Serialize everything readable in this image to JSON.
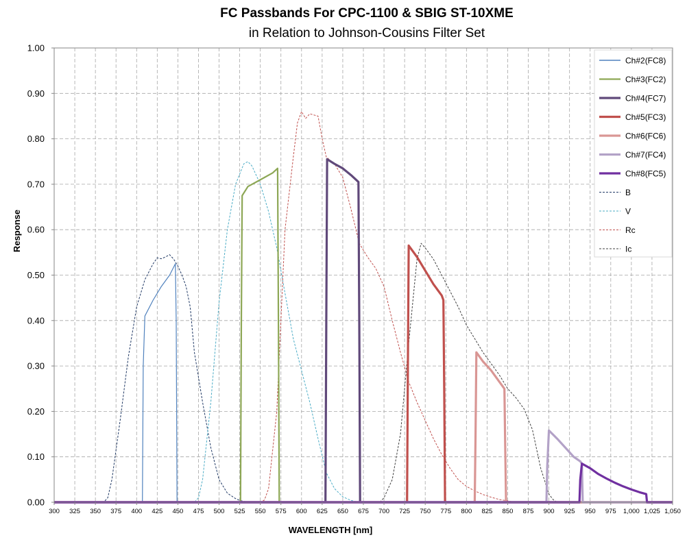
{
  "chart_data": {
    "type": "line",
    "title": "FC Passbands For CPC-1100 & SBIG ST-10XME",
    "subtitle": "in Relation to Johnson-Cousins Filter Set",
    "xlabel": "WAVELENGTH [nm]",
    "ylabel": "Response",
    "xlim": [
      300,
      1050
    ],
    "ylim": [
      0,
      1.0
    ],
    "xticks": [
      300,
      325,
      350,
      375,
      400,
      425,
      450,
      475,
      500,
      525,
      550,
      575,
      600,
      625,
      650,
      675,
      700,
      725,
      750,
      775,
      800,
      825,
      850,
      875,
      900,
      925,
      950,
      975,
      1000,
      1025,
      1050
    ],
    "xtick_labels": [
      "300",
      "325",
      "350",
      "375",
      "400",
      "425",
      "450",
      "475",
      "500",
      "525",
      "550",
      "575",
      "600",
      "625",
      "650",
      "675",
      "700",
      "725",
      "750",
      "775",
      "800",
      "825",
      "850",
      "875",
      "900",
      "925",
      "950",
      "975",
      "1,000",
      "1,025",
      "1,050"
    ],
    "yticks": [
      0,
      0.1,
      0.2,
      0.3,
      0.4,
      0.5,
      0.6,
      0.7,
      0.8,
      0.9,
      1.0
    ],
    "ytick_labels": [
      "0.00",
      "0.10",
      "0.20",
      "0.30",
      "0.40",
      "0.50",
      "0.60",
      "0.70",
      "0.80",
      "0.90",
      "1.00"
    ],
    "grid": true,
    "legend_position": "top-right",
    "series": [
      {
        "name": "Ch#2(FC8)",
        "color": "#4F81BD",
        "width": 1.2,
        "dash": false,
        "x": [
          300,
          407,
          408,
          410,
          420,
          430,
          440,
          447,
          448,
          449,
          1050
        ],
        "y": [
          0,
          0,
          0.3,
          0.41,
          0.445,
          0.475,
          0.5,
          0.525,
          0.4,
          0,
          0
        ]
      },
      {
        "name": "Ch#3(FC2)",
        "color": "#8DA755",
        "width": 2.2,
        "dash": false,
        "x": [
          300,
          526,
          527,
          528,
          535,
          545,
          555,
          565,
          571,
          572,
          573,
          1050
        ],
        "y": [
          0,
          0,
          0.4,
          0.675,
          0.695,
          0.705,
          0.715,
          0.725,
          0.735,
          0.4,
          0,
          0
        ]
      },
      {
        "name": "Ch#4(FC7)",
        "color": "#60497A",
        "width": 3.2,
        "dash": false,
        "x": [
          300,
          629,
          630,
          631,
          640,
          650,
          660,
          669,
          670,
          671,
          1050
        ],
        "y": [
          0,
          0,
          0.4,
          0.755,
          0.745,
          0.735,
          0.72,
          0.705,
          0.4,
          0,
          0
        ]
      },
      {
        "name": "Ch#5(FC3)",
        "color": "#C0504D",
        "width": 3.2,
        "dash": false,
        "x": [
          300,
          728,
          729,
          730,
          740,
          750,
          760,
          770,
          772,
          773,
          774,
          1050
        ],
        "y": [
          0,
          0,
          0.3,
          0.565,
          0.54,
          0.51,
          0.48,
          0.455,
          0.445,
          0.25,
          0,
          0
        ]
      },
      {
        "name": "Ch#6(FC6)",
        "color": "#D99694",
        "width": 3.2,
        "dash": false,
        "x": [
          300,
          810,
          811,
          812,
          820,
          830,
          840,
          846,
          847,
          848,
          1050
        ],
        "y": [
          0,
          0,
          0.15,
          0.33,
          0.31,
          0.29,
          0.265,
          0.25,
          0.12,
          0,
          0
        ]
      },
      {
        "name": "Ch#7(FC4)",
        "color": "#B3A2C7",
        "width": 3.2,
        "dash": false,
        "x": [
          300,
          897,
          898,
          900,
          910,
          920,
          930,
          938,
          940,
          941,
          1050
        ],
        "y": [
          0,
          0,
          0.08,
          0.158,
          0.14,
          0.12,
          0.1,
          0.09,
          0.085,
          0,
          0
        ]
      },
      {
        "name": "Ch#8(FC5)",
        "color": "#7030A0",
        "width": 3.2,
        "dash": false,
        "x": [
          300,
          937,
          938,
          940,
          950,
          960,
          970,
          980,
          990,
          1000,
          1010,
          1018,
          1019,
          1050
        ],
        "y": [
          0,
          0,
          0.05,
          0.085,
          0.075,
          0.062,
          0.052,
          0.043,
          0.035,
          0.028,
          0.022,
          0.018,
          0,
          0
        ]
      },
      {
        "name": "B",
        "color": "#1F3864",
        "width": 1,
        "dash": true,
        "x": [
          300,
          360,
          365,
          370,
          380,
          390,
          400,
          405,
          410,
          420,
          425,
          430,
          435,
          440,
          445,
          450,
          455,
          460,
          465,
          470,
          480,
          490,
          500,
          510,
          520,
          525,
          530,
          540,
          1050
        ],
        "y": [
          0,
          0,
          0.01,
          0.05,
          0.18,
          0.32,
          0.43,
          0.46,
          0.49,
          0.525,
          0.538,
          0.536,
          0.54,
          0.545,
          0.535,
          0.52,
          0.5,
          0.475,
          0.43,
          0.33,
          0.22,
          0.12,
          0.05,
          0.02,
          0.008,
          0.004,
          0.002,
          0,
          0
        ]
      },
      {
        "name": "V",
        "color": "#4BACC6",
        "width": 1,
        "dash": true,
        "x": [
          300,
          470,
          475,
          480,
          490,
          500,
          510,
          520,
          530,
          535,
          540,
          550,
          560,
          570,
          580,
          590,
          600,
          610,
          620,
          630,
          640,
          650,
          660,
          670,
          1050
        ],
        "y": [
          0,
          0,
          0.01,
          0.05,
          0.22,
          0.44,
          0.6,
          0.7,
          0.745,
          0.75,
          0.74,
          0.7,
          0.64,
          0.56,
          0.46,
          0.36,
          0.29,
          0.22,
          0.14,
          0.065,
          0.03,
          0.012,
          0.004,
          0,
          0
        ]
      },
      {
        "name": "Rc",
        "color": "#C0504D",
        "width": 1,
        "dash": true,
        "x": [
          300,
          550,
          555,
          560,
          570,
          575,
          580,
          590,
          595,
          600,
          605,
          610,
          620,
          625,
          630,
          640,
          650,
          660,
          670,
          680,
          690,
          700,
          710,
          720,
          730,
          740,
          750,
          760,
          770,
          780,
          790,
          800,
          810,
          820,
          830,
          840,
          850,
          860,
          1050
        ],
        "y": [
          0,
          0,
          0.005,
          0.03,
          0.2,
          0.4,
          0.6,
          0.76,
          0.835,
          0.86,
          0.845,
          0.855,
          0.85,
          0.8,
          0.76,
          0.745,
          0.715,
          0.645,
          0.57,
          0.54,
          0.515,
          0.475,
          0.4,
          0.33,
          0.265,
          0.22,
          0.18,
          0.14,
          0.105,
          0.075,
          0.05,
          0.035,
          0.025,
          0.017,
          0.011,
          0.006,
          0.003,
          0,
          0
        ]
      },
      {
        "name": "Ic",
        "color": "#404040",
        "width": 1,
        "dash": true,
        "x": [
          300,
          695,
          700,
          710,
          720,
          730,
          740,
          745,
          750,
          760,
          770,
          780,
          790,
          800,
          810,
          820,
          830,
          840,
          850,
          860,
          870,
          880,
          890,
          900,
          905,
          910,
          1050
        ],
        "y": [
          0,
          0,
          0.01,
          0.05,
          0.15,
          0.35,
          0.535,
          0.57,
          0.56,
          0.535,
          0.5,
          0.465,
          0.43,
          0.39,
          0.36,
          0.33,
          0.305,
          0.28,
          0.25,
          0.23,
          0.205,
          0.16,
          0.075,
          0.018,
          0.006,
          0,
          0
        ]
      }
    ]
  }
}
